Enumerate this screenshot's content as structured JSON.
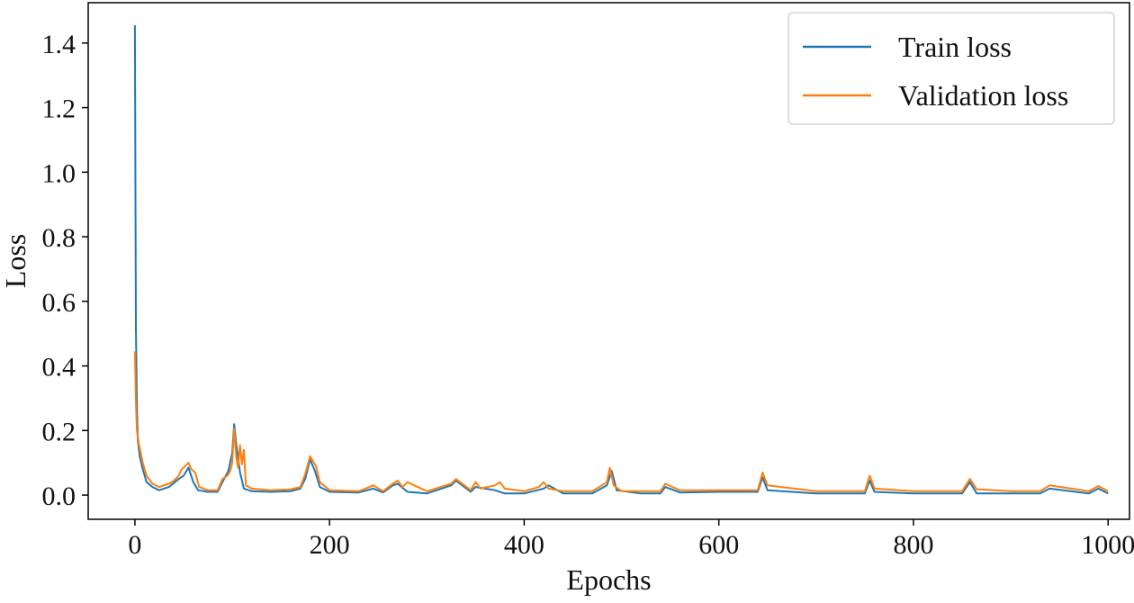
{
  "chart_data": {
    "type": "line",
    "title": "",
    "xlabel": "Epochs",
    "ylabel": "Loss",
    "xlim": [
      -48,
      1022
    ],
    "ylim": [
      -0.075,
      1.525
    ],
    "xticks": [
      0,
      200,
      400,
      600,
      800,
      1000
    ],
    "xtick_labels": [
      "0",
      "200",
      "400",
      "600",
      "800",
      "1000"
    ],
    "yticks": [
      0.0,
      0.2,
      0.4,
      0.6,
      0.8,
      1.0,
      1.2,
      1.4
    ],
    "ytick_labels": [
      "0.0",
      "0.2",
      "0.4",
      "0.6",
      "0.8",
      "1.0",
      "1.2",
      "1.4"
    ],
    "grid": false,
    "legend_position": "top-right",
    "series": [
      {
        "name": "Train loss",
        "color": "#1f77b4",
        "x": [
          0,
          1,
          2,
          3,
          5,
          8,
          12,
          18,
          25,
          35,
          45,
          50,
          55,
          60,
          65,
          75,
          85,
          90,
          96,
          100,
          102,
          104,
          108,
          112,
          120,
          140,
          160,
          170,
          175,
          180,
          185,
          190,
          200,
          230,
          245,
          255,
          265,
          270,
          280,
          300,
          325,
          330,
          345,
          350,
          370,
          380,
          400,
          420,
          425,
          440,
          470,
          485,
          490,
          495,
          520,
          540,
          545,
          560,
          600,
          640,
          645,
          650,
          700,
          750,
          755,
          760,
          800,
          850,
          858,
          865,
          900,
          930,
          940,
          980,
          990,
          1000
        ],
        "y": [
          1.455,
          0.52,
          0.28,
          0.17,
          0.12,
          0.08,
          0.04,
          0.025,
          0.015,
          0.025,
          0.05,
          0.06,
          0.085,
          0.04,
          0.015,
          0.01,
          0.01,
          0.04,
          0.075,
          0.13,
          0.22,
          0.16,
          0.07,
          0.02,
          0.012,
          0.01,
          0.012,
          0.02,
          0.05,
          0.11,
          0.075,
          0.025,
          0.01,
          0.008,
          0.02,
          0.008,
          0.03,
          0.035,
          0.01,
          0.005,
          0.03,
          0.045,
          0.01,
          0.025,
          0.015,
          0.005,
          0.005,
          0.02,
          0.03,
          0.005,
          0.005,
          0.03,
          0.075,
          0.015,
          0.005,
          0.005,
          0.025,
          0.008,
          0.01,
          0.01,
          0.055,
          0.015,
          0.005,
          0.005,
          0.045,
          0.01,
          0.005,
          0.005,
          0.04,
          0.005,
          0.005,
          0.005,
          0.02,
          0.005,
          0.02,
          0.005
        ]
      },
      {
        "name": "Validation loss",
        "color": "#ff7f0e",
        "x": [
          0,
          1,
          2,
          4,
          6,
          8,
          12,
          18,
          25,
          35,
          40,
          45,
          48,
          50,
          55,
          58,
          62,
          66,
          75,
          85,
          90,
          95,
          98,
          100,
          102,
          104,
          106,
          108,
          110,
          112,
          114,
          120,
          140,
          160,
          170,
          175,
          180,
          183,
          186,
          190,
          200,
          230,
          245,
          255,
          265,
          270,
          275,
          280,
          300,
          325,
          330,
          345,
          350,
          355,
          370,
          375,
          380,
          400,
          415,
          420,
          425,
          440,
          470,
          485,
          488,
          492,
          500,
          520,
          540,
          545,
          560,
          600,
          640,
          645,
          650,
          700,
          750,
          755,
          760,
          800,
          850,
          858,
          865,
          900,
          930,
          940,
          980,
          990,
          1000
        ],
        "y": [
          0.445,
          0.29,
          0.2,
          0.16,
          0.13,
          0.1,
          0.06,
          0.035,
          0.025,
          0.035,
          0.045,
          0.06,
          0.08,
          0.085,
          0.1,
          0.08,
          0.07,
          0.025,
          0.015,
          0.015,
          0.05,
          0.06,
          0.075,
          0.1,
          0.205,
          0.12,
          0.085,
          0.155,
          0.095,
          0.14,
          0.03,
          0.02,
          0.015,
          0.018,
          0.025,
          0.065,
          0.12,
          0.105,
          0.09,
          0.04,
          0.015,
          0.012,
          0.03,
          0.012,
          0.035,
          0.045,
          0.025,
          0.04,
          0.012,
          0.035,
          0.05,
          0.015,
          0.04,
          0.02,
          0.03,
          0.04,
          0.02,
          0.012,
          0.025,
          0.04,
          0.02,
          0.012,
          0.012,
          0.04,
          0.085,
          0.03,
          0.012,
          0.012,
          0.012,
          0.035,
          0.015,
          0.015,
          0.015,
          0.07,
          0.03,
          0.012,
          0.012,
          0.06,
          0.02,
          0.012,
          0.012,
          0.05,
          0.018,
          0.012,
          0.012,
          0.03,
          0.012,
          0.028,
          0.012
        ]
      }
    ]
  }
}
